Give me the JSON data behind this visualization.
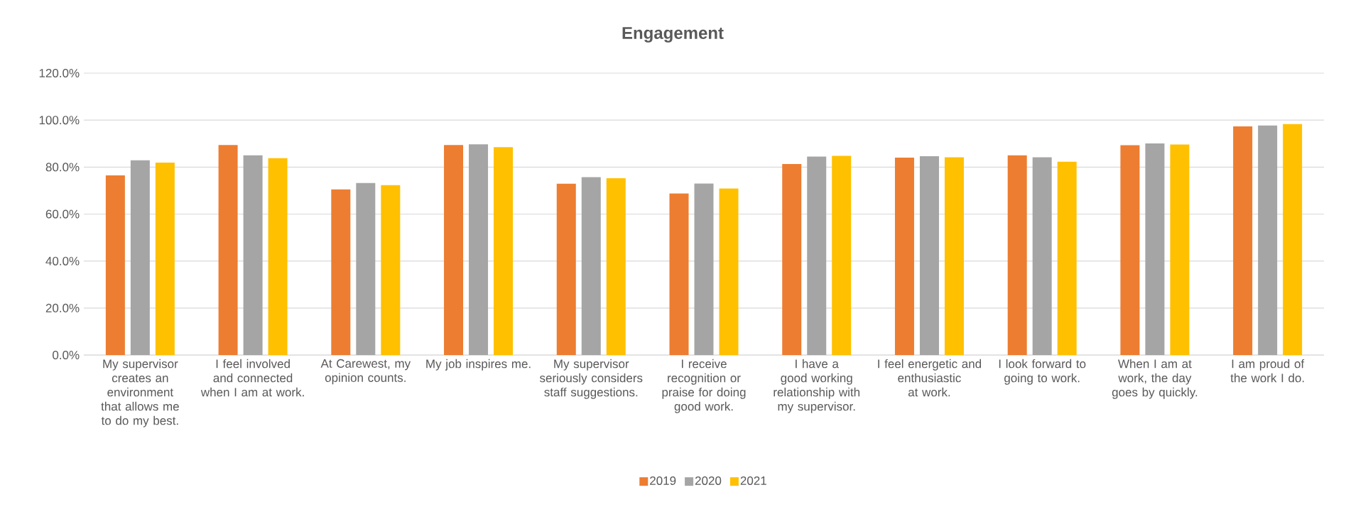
{
  "chart_data": {
    "type": "bar",
    "title": "Engagement",
    "categories": [
      "My supervisor creates an environment that allows me to do my best.",
      "I feel involved and connected when I am at work.",
      "At Carewest, my opinion counts.",
      "My job inspires me.",
      "My supervisor seriously considers staff suggestions.",
      "I receive recognition or praise for doing good work.",
      "I have a good working relationship with my supervisor.",
      "I feel energetic and enthusiastic at work.",
      "I look forward to going to work.",
      "When I am at work, the day goes by quickly.",
      "I am proud of the work I do."
    ],
    "series": [
      {
        "name": "2019",
        "color": "#ed7d31",
        "values": [
          76.5,
          89.4,
          70.5,
          89.4,
          72.9,
          68.8,
          81.3,
          84.0,
          85.0,
          89.3,
          97.3
        ]
      },
      {
        "name": "2020",
        "color": "#a5a5a5",
        "values": [
          82.9,
          85.0,
          73.2,
          89.7,
          75.7,
          73.0,
          84.5,
          84.6,
          84.2,
          90.1,
          97.7
        ]
      },
      {
        "name": "2021",
        "color": "#ffc000",
        "values": [
          81.9,
          83.8,
          72.3,
          88.5,
          75.3,
          70.9,
          84.8,
          84.2,
          82.3,
          89.6,
          98.3
        ]
      }
    ],
    "ylim": [
      0,
      120
    ],
    "yticks": [
      {
        "value": 0,
        "label": "0.0%"
      },
      {
        "value": 20,
        "label": "20.0%"
      },
      {
        "value": 40,
        "label": "40.0%"
      },
      {
        "value": 60,
        "label": "60.0%"
      },
      {
        "value": 80,
        "label": "80.0%"
      },
      {
        "value": 100,
        "label": "100.0%"
      },
      {
        "value": 120,
        "label": "120.0%"
      }
    ],
    "grid": "y",
    "legend": "bottom"
  }
}
